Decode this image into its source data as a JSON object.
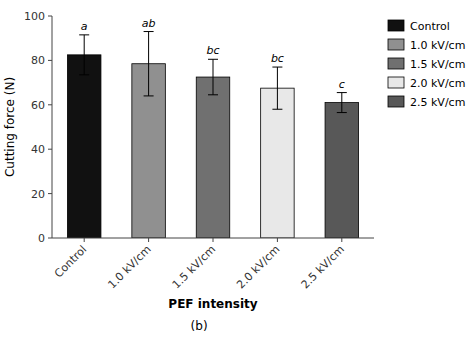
{
  "chart_data": {
    "type": "bar",
    "categories": [
      "Control",
      "1.0 kV/cm",
      "1.5 kV/cm",
      "2.0 kV/cm",
      "2.5 kV/cm"
    ],
    "values": [
      82.5,
      78.5,
      72.5,
      67.5,
      61.0
    ],
    "errors": [
      9.0,
      14.5,
      8.0,
      9.5,
      4.5
    ],
    "colors": [
      "#111111",
      "#909090",
      "#707070",
      "#e8e8e8",
      "#585858"
    ],
    "annotations": [
      "a",
      "ab",
      "bc",
      "bc",
      "c"
    ],
    "xlabel": "PEF intensity",
    "ylabel": "Cutting force (N)",
    "caption": "(b)",
    "ylim": [
      0,
      100
    ],
    "yticks": [
      0,
      20,
      40,
      60,
      80,
      100
    ],
    "grid": false,
    "legend": "right"
  }
}
